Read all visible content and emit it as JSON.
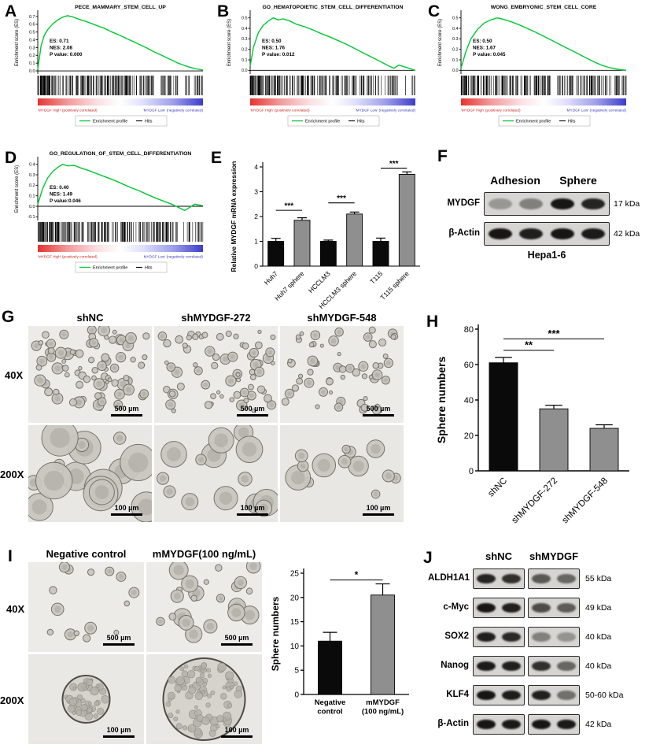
{
  "figure": {
    "letters": [
      "A",
      "B",
      "C",
      "D",
      "E",
      "F",
      "G",
      "H",
      "I",
      "J"
    ],
    "panelF": {
      "headers": [
        "Adhesion",
        "Sphere"
      ],
      "rows": [
        {
          "label": "MYDGF",
          "kda": "17 kDa",
          "bands": [
            0.3,
            0.42,
            0.95,
            0.88
          ]
        },
        {
          "label": "β-Actin",
          "kda": "42 kDa",
          "bands": [
            0.95,
            0.9,
            0.95,
            0.92
          ]
        }
      ],
      "footer": "Hepa1-6"
    },
    "panelG": {
      "col_headers": [
        "shNC",
        "shMYDGF-272",
        "shMYDGF-548"
      ],
      "row_headers": [
        "40X",
        "200X"
      ],
      "scale_bars": [
        "500 µm",
        "100 µm"
      ]
    },
    "panelI": {
      "col_headers": [
        "Negative control",
        "mMYDGF(100 ng/mL)"
      ],
      "row_headers": [
        "40X",
        "200X"
      ],
      "scale_bars": [
        "500 µm",
        "100 µm"
      ]
    },
    "panelJ": {
      "headers": [
        "shNC",
        "shMYDGF"
      ],
      "rows": [
        {
          "label": "ALDH1A1",
          "kda": "55 kDa",
          "bands": [
            [
              0.88,
              0.82
            ],
            [
              0.62,
              0.55
            ]
          ]
        },
        {
          "label": "c-Myc",
          "kda": "49 kDa",
          "bands": [
            [
              0.95,
              0.9
            ],
            [
              0.68,
              0.6
            ]
          ]
        },
        {
          "label": "SOX2",
          "kda": "40 kDa",
          "bands": [
            [
              0.9,
              0.85
            ],
            [
              0.42,
              0.32
            ]
          ]
        },
        {
          "label": "Nanog",
          "kda": "40 kDa",
          "bands": [
            [
              0.92,
              0.9
            ],
            [
              0.82,
              0.55
            ]
          ]
        },
        {
          "label": "KLF4",
          "kda": "50-60 kDa",
          "bands": [
            [
              0.95,
              0.92
            ],
            [
              0.9,
              0.5
            ]
          ]
        },
        {
          "label": "β-Actin",
          "kda": "42 kDa",
          "bands": [
            [
              0.95,
              0.93
            ],
            [
              0.95,
              0.93
            ]
          ]
        }
      ]
    }
  },
  "chart_data": [
    {
      "type": "line",
      "subtype": "gsea_enrichment",
      "panel": "A",
      "title": "PECE_MAMMARY_STEM_CELL_UP",
      "ylabel": "Enrichment score (ES)",
      "es": 0.71,
      "nes": 2.08,
      "p_value": 0.0,
      "stats_lines": [
        "ES: 0.71",
        "NES: 2.08",
        "P value: 0.000"
      ],
      "ylim": [
        -0.02,
        0.75
      ],
      "yticks": [
        0.0,
        0.1,
        0.2,
        0.3,
        0.4,
        0.5,
        0.6,
        0.7
      ],
      "curve": [
        [
          0,
          0.02
        ],
        [
          0.02,
          0.32
        ],
        [
          0.04,
          0.46
        ],
        [
          0.06,
          0.53
        ],
        [
          0.08,
          0.58
        ],
        [
          0.1,
          0.62
        ],
        [
          0.12,
          0.655
        ],
        [
          0.15,
          0.69
        ],
        [
          0.18,
          0.71
        ],
        [
          0.21,
          0.695
        ],
        [
          0.25,
          0.665
        ],
        [
          0.3,
          0.63
        ],
        [
          0.35,
          0.59
        ],
        [
          0.4,
          0.55
        ],
        [
          0.45,
          0.5
        ],
        [
          0.5,
          0.455
        ],
        [
          0.55,
          0.405
        ],
        [
          0.6,
          0.355
        ],
        [
          0.65,
          0.305
        ],
        [
          0.7,
          0.25
        ],
        [
          0.75,
          0.2
        ],
        [
          0.8,
          0.15
        ],
        [
          0.85,
          0.1
        ],
        [
          0.9,
          0.06
        ],
        [
          0.95,
          0.03
        ],
        [
          1,
          0.01
        ]
      ],
      "left_label": "'MYDGF High' (positively correlated)",
      "right_label": "'MYDGF Low' (negatively correlated)",
      "legend": [
        "Enrichment profile",
        "Hits"
      ]
    },
    {
      "type": "line",
      "subtype": "gsea_enrichment",
      "panel": "B",
      "title": "GO_HEMATOPOIETIC_STEM_CELL_DIFFERENTIATION",
      "ylabel": "Enrichment score (ES)",
      "es": 0.5,
      "nes": 1.76,
      "p_value": 0.012,
      "stats_lines": [
        "ES: 0.50",
        "NES: 1.76",
        "P value: 0.012"
      ],
      "ylim": [
        -0.02,
        0.55
      ],
      "yticks": [
        0.0,
        0.1,
        0.2,
        0.3,
        0.4,
        0.5
      ],
      "curve": [
        [
          0,
          0.04
        ],
        [
          0.02,
          0.22
        ],
        [
          0.05,
          0.36
        ],
        [
          0.08,
          0.43
        ],
        [
          0.11,
          0.47
        ],
        [
          0.14,
          0.5
        ],
        [
          0.17,
          0.48
        ],
        [
          0.2,
          0.49
        ],
        [
          0.24,
          0.47
        ],
        [
          0.28,
          0.44
        ],
        [
          0.33,
          0.415
        ],
        [
          0.38,
          0.385
        ],
        [
          0.43,
          0.35
        ],
        [
          0.48,
          0.32
        ],
        [
          0.53,
          0.285
        ],
        [
          0.58,
          0.25
        ],
        [
          0.63,
          0.21
        ],
        [
          0.68,
          0.17
        ],
        [
          0.73,
          0.13
        ],
        [
          0.78,
          0.09
        ],
        [
          0.83,
          0.05
        ],
        [
          0.87,
          0.02
        ],
        [
          0.9,
          0.05
        ],
        [
          0.94,
          0.03
        ],
        [
          1,
          0.0
        ]
      ],
      "left_label": "'MYDGF High' (positively correlated)",
      "right_label": "'MYDGF Low' (negatively correlated)",
      "legend": [
        "Enrichment profile",
        "Hits"
      ]
    },
    {
      "type": "line",
      "subtype": "gsea_enrichment",
      "panel": "C",
      "title": "WONG_EMBRYONIC_STEM_CELL_CORE",
      "ylabel": "Enrichment score (ES)",
      "es": 0.5,
      "nes": 1.67,
      "p_value": 0.045,
      "stats_lines": [
        "ES: 0.50",
        "NES: 1.67",
        "P value: 0.045"
      ],
      "ylim": [
        -0.02,
        0.55
      ],
      "yticks": [
        0.0,
        0.1,
        0.2,
        0.3,
        0.4,
        0.5
      ],
      "curve": [
        [
          0,
          0.02
        ],
        [
          0.03,
          0.18
        ],
        [
          0.06,
          0.3
        ],
        [
          0.1,
          0.39
        ],
        [
          0.14,
          0.45
        ],
        [
          0.18,
          0.48
        ],
        [
          0.22,
          0.5
        ],
        [
          0.26,
          0.485
        ],
        [
          0.3,
          0.465
        ],
        [
          0.35,
          0.435
        ],
        [
          0.4,
          0.4
        ],
        [
          0.45,
          0.365
        ],
        [
          0.5,
          0.325
        ],
        [
          0.55,
          0.285
        ],
        [
          0.6,
          0.245
        ],
        [
          0.65,
          0.205
        ],
        [
          0.7,
          0.165
        ],
        [
          0.75,
          0.125
        ],
        [
          0.8,
          0.085
        ],
        [
          0.85,
          0.05
        ],
        [
          0.9,
          0.025
        ],
        [
          0.95,
          0.01
        ],
        [
          1,
          0
        ]
      ],
      "left_label": "'MYDGF High' (positively correlated)",
      "right_label": "'MYDGF Low' (negatively correlated)",
      "legend": [
        "Enrichment profile",
        "Hits"
      ]
    },
    {
      "type": "line",
      "subtype": "gsea_enrichment",
      "panel": "D",
      "title": "GO_REGULATION_OF_STEM_CELL_DIFFERENTIATION",
      "ylabel": "Enrichment score (ES)",
      "es": 0.4,
      "nes": 1.49,
      "p_value": 0.046,
      "stats_lines": [
        "ES: 0.40",
        "NES: 1.49",
        "P value:0.046"
      ],
      "ylim": [
        -0.12,
        0.45
      ],
      "yticks": [
        -0.1,
        0.0,
        0.1,
        0.2,
        0.3,
        0.4
      ],
      "curve": [
        [
          0,
          0.02
        ],
        [
          0.03,
          0.17
        ],
        [
          0.06,
          0.27
        ],
        [
          0.09,
          0.33
        ],
        [
          0.12,
          0.37
        ],
        [
          0.15,
          0.4
        ],
        [
          0.18,
          0.385
        ],
        [
          0.22,
          0.39
        ],
        [
          0.26,
          0.365
        ],
        [
          0.31,
          0.34
        ],
        [
          0.36,
          0.31
        ],
        [
          0.41,
          0.28
        ],
        [
          0.46,
          0.25
        ],
        [
          0.51,
          0.215
        ],
        [
          0.56,
          0.18
        ],
        [
          0.61,
          0.15
        ],
        [
          0.66,
          0.115
        ],
        [
          0.71,
          0.08
        ],
        [
          0.76,
          0.05
        ],
        [
          0.81,
          0.02
        ],
        [
          0.85,
          -0.01
        ],
        [
          0.89,
          -0.04
        ],
        [
          0.92,
          -0.01
        ],
        [
          0.95,
          0.02
        ],
        [
          1,
          0.005
        ]
      ],
      "left_label": "'MYDGF High' (positively correlated)",
      "right_label": "MYDGF Low' (negatively correlated)",
      "legend": [
        "Enrichment profile",
        "Hits"
      ]
    },
    {
      "type": "bar",
      "panel": "E",
      "title": "",
      "ylabel": "Relative MYDGF mRNA expression",
      "categories": [
        "Huh7",
        "Huh7 sphere",
        "HCCLM3",
        "HCCLM3 sphere",
        "T115",
        "T115 sphere"
      ],
      "values": [
        1.0,
        1.85,
        1.0,
        2.1,
        1.0,
        3.7
      ],
      "errors": [
        0.12,
        0.1,
        0.05,
        0.08,
        0.13,
        0.1
      ],
      "bar_colors": [
        "#0a0a0a",
        "#8f8f8f",
        "#0a0a0a",
        "#8f8f8f",
        "#0a0a0a",
        "#8f8f8f"
      ],
      "ylim": [
        0,
        4
      ],
      "yticks": [
        0,
        1,
        2,
        3,
        4
      ],
      "significance": [
        {
          "from": 0,
          "to": 1,
          "y": 2.25,
          "label": "***"
        },
        {
          "from": 2,
          "to": 3,
          "y": 2.55,
          "label": "***"
        },
        {
          "from": 4,
          "to": 5,
          "y": 3.95,
          "label": "***"
        }
      ]
    },
    {
      "type": "bar",
      "panel": "H",
      "title": "",
      "ylabel": "Sphere numbers",
      "categories": [
        "shNC",
        "shMYDGF-272",
        "shMYDGF-548"
      ],
      "values": [
        61,
        35,
        24
      ],
      "errors": [
        3,
        2,
        2
      ],
      "bar_colors": [
        "#0a0a0a",
        "#8f8f8f",
        "#8f8f8f"
      ],
      "ylim": [
        0,
        80
      ],
      "yticks": [
        0,
        20,
        40,
        60,
        80
      ],
      "significance": [
        {
          "from": 0,
          "to": 1,
          "y": 68,
          "label": "**"
        },
        {
          "from": 0,
          "to": 2,
          "y": 74.5,
          "label": "***"
        }
      ]
    },
    {
      "type": "bar",
      "panel": "I",
      "title": "",
      "ylabel": "Sphere numbers",
      "categories": [
        "Negative control",
        "mMYDGF (100 ng/mL)"
      ],
      "values": [
        11,
        20.5
      ],
      "errors": [
        1.8,
        2.3
      ],
      "bar_colors": [
        "#0a0a0a",
        "#8f8f8f"
      ],
      "ylim": [
        0,
        25
      ],
      "yticks": [
        0,
        5,
        10,
        15,
        20,
        25
      ],
      "significance": [
        {
          "from": 0,
          "to": 1,
          "y": 23.6,
          "label": "*"
        }
      ]
    }
  ]
}
